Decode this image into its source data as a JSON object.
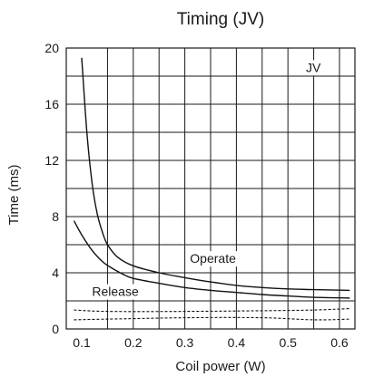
{
  "chart_data": {
    "type": "line",
    "title": "Timing (JV)",
    "xlabel": "Coil power (W)",
    "ylabel": "Time (ms)",
    "xlim": [
      0.07,
      0.63
    ],
    "ylim": [
      0,
      20
    ],
    "x_ticks": [
      0.1,
      0.2,
      0.3,
      0.4,
      0.5,
      0.6
    ],
    "y_ticks": [
      0,
      4,
      8,
      12,
      16,
      20
    ],
    "x_grid": [
      0.15,
      0.2,
      0.25,
      0.3,
      0.35,
      0.4,
      0.45,
      0.5,
      0.55,
      0.6
    ],
    "y_grid": [
      2,
      4,
      6,
      8,
      10,
      12,
      14,
      16,
      18
    ],
    "grid": true,
    "legend": "none",
    "series": [
      {
        "name": "Operate",
        "style": "solid",
        "x": [
          0.1,
          0.11,
          0.12,
          0.13,
          0.14,
          0.15,
          0.17,
          0.2,
          0.25,
          0.3,
          0.35,
          0.4,
          0.45,
          0.5,
          0.55,
          0.62
        ],
        "y": [
          19.3,
          14.0,
          10.4,
          8.2,
          6.9,
          6.0,
          5.1,
          4.5,
          4.0,
          3.65,
          3.35,
          3.1,
          2.95,
          2.85,
          2.8,
          2.75
        ]
      },
      {
        "name": "Release",
        "style": "solid",
        "x": [
          0.085,
          0.1,
          0.12,
          0.14,
          0.16,
          0.18,
          0.2,
          0.25,
          0.3,
          0.35,
          0.4,
          0.45,
          0.5,
          0.55,
          0.62
        ],
        "y": [
          7.7,
          6.7,
          5.6,
          4.8,
          4.3,
          3.9,
          3.6,
          3.25,
          2.95,
          2.75,
          2.6,
          2.45,
          2.35,
          2.25,
          2.2
        ]
      },
      {
        "name": "",
        "style": "dashed",
        "x": [
          0.085,
          0.15,
          0.3,
          0.45,
          0.55,
          0.62
        ],
        "y": [
          1.35,
          1.25,
          1.25,
          1.3,
          1.35,
          1.45
        ]
      },
      {
        "name": "",
        "style": "dashed",
        "x": [
          0.085,
          0.15,
          0.3,
          0.45,
          0.55,
          0.62
        ],
        "y": [
          0.65,
          0.7,
          0.8,
          0.8,
          0.65,
          0.7
        ]
      }
    ],
    "annotations": [
      {
        "text": "JV",
        "x": 0.535,
        "y": 18.3
      },
      {
        "text": "Operate",
        "x": 0.31,
        "y": 4.7
      },
      {
        "text": "Release",
        "x": 0.12,
        "y": 2.35
      }
    ]
  }
}
